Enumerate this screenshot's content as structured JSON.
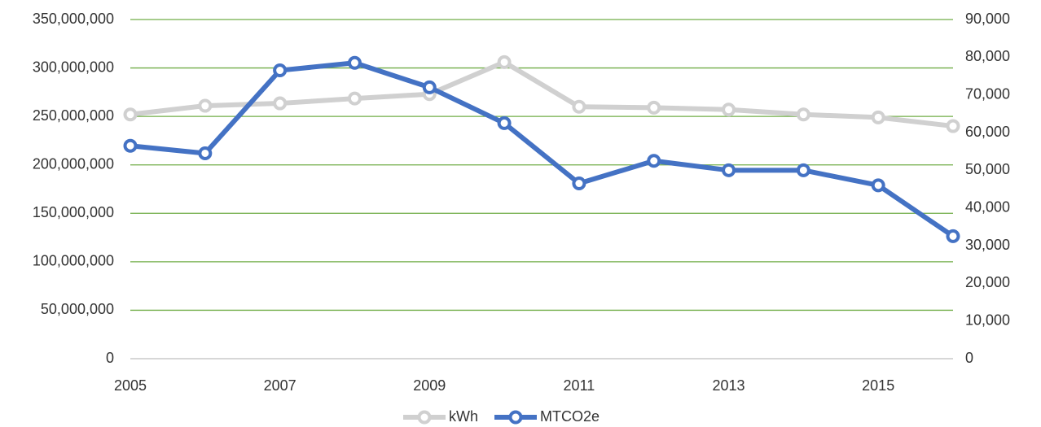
{
  "chart_data": {
    "type": "line",
    "x": [
      2005,
      2006,
      2007,
      2008,
      2009,
      2010,
      2011,
      2012,
      2013,
      2014,
      2015,
      2016
    ],
    "xlim": [
      2005,
      2016
    ],
    "xticks": [
      2005,
      2007,
      2009,
      2011,
      2013,
      2015
    ],
    "ylim": [
      0,
      350000000
    ],
    "yticks": [
      {
        "value": 0,
        "label": "0"
      },
      {
        "value": 50000000,
        "label": "50,000,000"
      },
      {
        "value": 100000000,
        "label": "100,000,000"
      },
      {
        "value": 150000000,
        "label": "150,000,000"
      },
      {
        "value": 200000000,
        "label": "200,000,000"
      },
      {
        "value": 250000000,
        "label": "250,000,000"
      },
      {
        "value": 300000000,
        "label": "300,000,000"
      },
      {
        "value": 350000000,
        "label": "350,000,000"
      }
    ],
    "y2lim": [
      0,
      90000
    ],
    "y2ticks": [
      {
        "value": 0,
        "label": "0"
      },
      {
        "value": 10000,
        "label": "10,000"
      },
      {
        "value": 20000,
        "label": "20,000"
      },
      {
        "value": 30000,
        "label": "30,000"
      },
      {
        "value": 40000,
        "label": "40,000"
      },
      {
        "value": 50000,
        "label": "50,000"
      },
      {
        "value": 60000,
        "label": "60,000"
      },
      {
        "value": 70000,
        "label": "70,000"
      },
      {
        "value": 80000,
        "label": "80,000"
      },
      {
        "value": 90000,
        "label": "90,000"
      }
    ],
    "grid": true,
    "grid_color": "#70ad47",
    "legend": "bottom",
    "series": [
      {
        "name": "kWh",
        "color": "#d0d0d0",
        "values": [
          252000000,
          261000000,
          263500000,
          268500000,
          273000000,
          306000000,
          260000000,
          259000000,
          257000000,
          252000000,
          249000000,
          240000000
        ]
      },
      {
        "name": "MTCO2e",
        "color": "#4472c4",
        "axis": "y2",
        "values": [
          56500,
          54500,
          76500,
          78500,
          72000,
          62500,
          46500,
          52500,
          50000,
          50000,
          46000,
          32500
        ]
      }
    ]
  }
}
